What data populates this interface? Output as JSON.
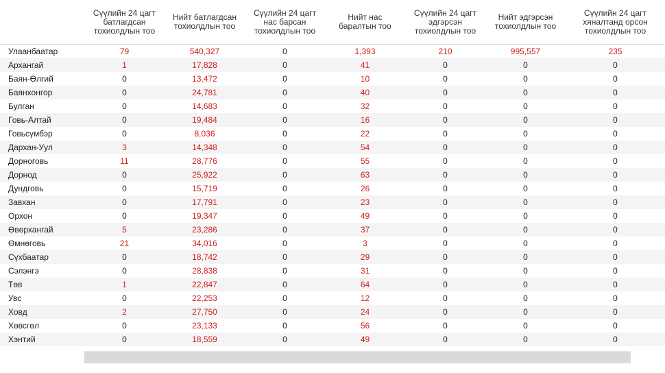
{
  "table": {
    "headers": [
      "",
      "Сүүлийн 24 цагт батлагдсан тохиолдлын тоо",
      "Нийт батлагдсан тохиолдлын тоо",
      "Сүүлийн 24 цагт нас барсан тохиолдлын тоо",
      "Нийт нас баралтын тоо",
      "Сүүлийн 24 цагт эдгэрсэн тохиолдлын тоо",
      "Нийт эдгэрсэн тохиолдлын тоо",
      "Сүүлийн 24 цагт хяналтанд орсон тохиолдлын тоо"
    ],
    "rows": [
      {
        "name": "Улаанбаатар",
        "cells": [
          "79",
          "540,327",
          "0",
          "1,393",
          "210",
          "995,557",
          "235"
        ]
      },
      {
        "name": "Архангай",
        "cells": [
          "1",
          "17,828",
          "0",
          "41",
          "0",
          "0",
          "0"
        ]
      },
      {
        "name": "Баян-Өлгий",
        "cells": [
          "0",
          "13,472",
          "0",
          "10",
          "0",
          "0",
          "0"
        ]
      },
      {
        "name": "Баянхонгор",
        "cells": [
          "0",
          "24,781",
          "0",
          "40",
          "0",
          "0",
          "0"
        ]
      },
      {
        "name": "Булган",
        "cells": [
          "0",
          "14,683",
          "0",
          "32",
          "0",
          "0",
          "0"
        ]
      },
      {
        "name": "Говь-Алтай",
        "cells": [
          "0",
          "19,484",
          "0",
          "16",
          "0",
          "0",
          "0"
        ]
      },
      {
        "name": "Говьсүмбэр",
        "cells": [
          "0",
          "8,036",
          "0",
          "22",
          "0",
          "0",
          "0"
        ]
      },
      {
        "name": "Дархан-Уул",
        "cells": [
          "3",
          "14,348",
          "0",
          "54",
          "0",
          "0",
          "0"
        ]
      },
      {
        "name": "Дорноговь",
        "cells": [
          "11",
          "28,776",
          "0",
          "55",
          "0",
          "0",
          "0"
        ]
      },
      {
        "name": "Дорнод",
        "cells": [
          "0",
          "25,922",
          "0",
          "63",
          "0",
          "0",
          "0"
        ]
      },
      {
        "name": "Дундговь",
        "cells": [
          "0",
          "15,719",
          "0",
          "26",
          "0",
          "0",
          "0"
        ]
      },
      {
        "name": "Завхан",
        "cells": [
          "0",
          "17,791",
          "0",
          "23",
          "0",
          "0",
          "0"
        ]
      },
      {
        "name": "Орхон",
        "cells": [
          "0",
          "19,347",
          "0",
          "49",
          "0",
          "0",
          "0"
        ]
      },
      {
        "name": "Өвөрхангай",
        "cells": [
          "5",
          "23,286",
          "0",
          "37",
          "0",
          "0",
          "0"
        ]
      },
      {
        "name": "Өмнөговь",
        "cells": [
          "21",
          "34,016",
          "0",
          "3",
          "0",
          "0",
          "0"
        ]
      },
      {
        "name": "Сүхбаатар",
        "cells": [
          "0",
          "18,742",
          "0",
          "29",
          "0",
          "0",
          "0"
        ]
      },
      {
        "name": "Сэлэнгэ",
        "cells": [
          "0",
          "28,838",
          "0",
          "31",
          "0",
          "0",
          "0"
        ]
      },
      {
        "name": "Төв",
        "cells": [
          "1",
          "22,847",
          "0",
          "64",
          "0",
          "0",
          "0"
        ]
      },
      {
        "name": "Увс",
        "cells": [
          "0",
          "22,253",
          "0",
          "12",
          "0",
          "0",
          "0"
        ]
      },
      {
        "name": "Ховд",
        "cells": [
          "2",
          "27,750",
          "0",
          "24",
          "0",
          "0",
          "0"
        ]
      },
      {
        "name": "Хөвсгөл",
        "cells": [
          "0",
          "23,133",
          "0",
          "56",
          "0",
          "0",
          "0"
        ]
      },
      {
        "name": "Хэнтий",
        "cells": [
          "0",
          "18,559",
          "0",
          "49",
          "0",
          "0",
          "0"
        ]
      }
    ]
  },
  "colors": {
    "highlight": "#d21f1f",
    "text": "#222222",
    "stripe": "#f4f4f4"
  }
}
